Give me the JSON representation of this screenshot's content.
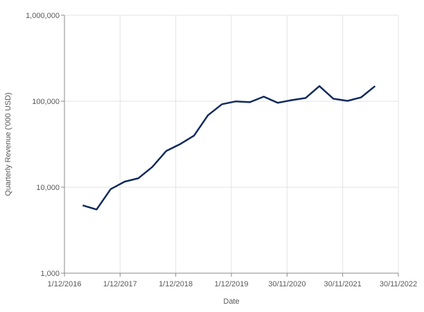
{
  "chart_data": {
    "type": "line",
    "title": "",
    "xlabel": "Date",
    "ylabel": "Quarterly Revenue ('000 USD)",
    "yscale": "log",
    "ylim": [
      1000,
      1000000
    ],
    "yticks": [
      1000,
      10000,
      100000,
      1000000
    ],
    "ytick_labels": [
      "1,000",
      "10,000",
      "100,000",
      "1,000,000"
    ],
    "xlim": [
      "2016-12-01",
      "2022-11-30"
    ],
    "xticks": [
      "2016-12-01",
      "2017-12-01",
      "2018-12-01",
      "2019-12-01",
      "2020-11-30",
      "2021-11-30",
      "2022-11-30"
    ],
    "xtick_labels": [
      "1/12/2016",
      "1/12/2017",
      "1/12/2018",
      "1/12/2019",
      "30/11/2020",
      "30/11/2021",
      "30/11/2022"
    ],
    "grid": true,
    "line_color": "#0f2a5c",
    "series": [
      {
        "name": "Quarterly Revenue",
        "x": [
          "2017-03-31",
          "2017-06-30",
          "2017-09-30",
          "2017-12-31",
          "2018-03-31",
          "2018-06-30",
          "2018-09-30",
          "2018-12-31",
          "2019-03-31",
          "2019-06-30",
          "2019-09-30",
          "2019-12-31",
          "2020-03-31",
          "2020-06-30",
          "2020-09-30",
          "2020-12-31",
          "2021-03-31",
          "2021-06-30",
          "2021-09-30",
          "2021-12-31",
          "2022-03-31",
          "2022-06-30"
        ],
        "values": [
          6150,
          5500,
          9500,
          11600,
          12700,
          17200,
          26400,
          31800,
          39800,
          68600,
          92300,
          99600,
          97500,
          113000,
          95800,
          103000,
          109000,
          150000,
          107000,
          101000,
          111000,
          150000
        ]
      }
    ]
  }
}
